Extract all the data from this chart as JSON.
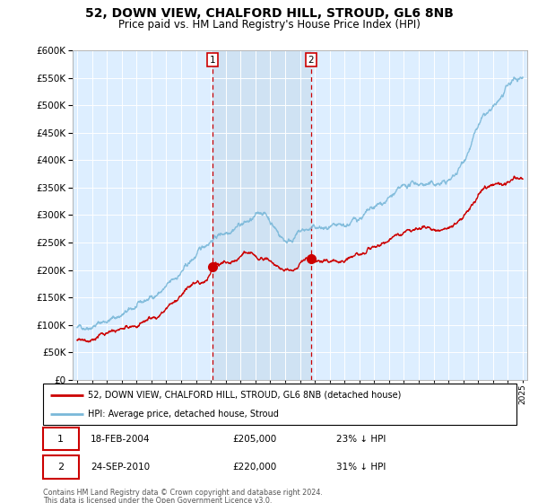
{
  "title": "52, DOWN VIEW, CHALFORD HILL, STROUD, GL6 8NB",
  "subtitle": "Price paid vs. HM Land Registry's House Price Index (HPI)",
  "legend_line1": "52, DOWN VIEW, CHALFORD HILL, STROUD, GL6 8NB (detached house)",
  "legend_line2": "HPI: Average price, detached house, Stroud",
  "footer1": "Contains HM Land Registry data © Crown copyright and database right 2024.",
  "footer2": "This data is licensed under the Open Government Licence v3.0.",
  "transactions": [
    {
      "label": "1",
      "date": "18-FEB-2004",
      "price": 205000,
      "pct": "23%",
      "direction": "↓",
      "year": 2004.12
    },
    {
      "label": "2",
      "date": "24-SEP-2010",
      "price": 220000,
      "pct": "31%",
      "direction": "↓",
      "year": 2010.73
    }
  ],
  "hpi_color": "#7ab8d9",
  "price_color": "#cc0000",
  "vline_color": "#cc0000",
  "bg_color": "#ddeeff",
  "shade_color": "#cce0f0",
  "ylim": [
    0,
    600000
  ],
  "xlim": [
    1994.7,
    2025.3
  ]
}
